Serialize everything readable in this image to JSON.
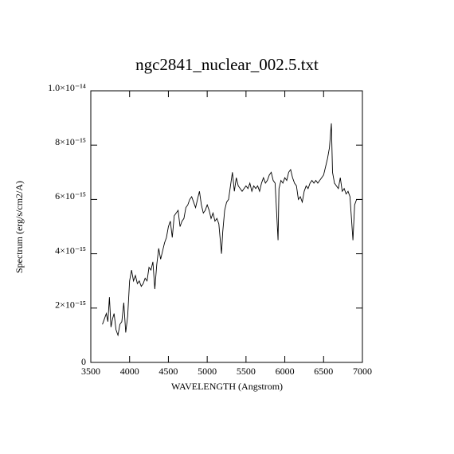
{
  "chart_data": {
    "type": "line",
    "title": "ngc2841_nuclear_002.5.txt",
    "xlabel": "WAVELENGTH (Angstrom)",
    "ylabel": "Spectrum (erg/s/cm2/A)",
    "xlim": [
      3500,
      7000
    ],
    "ylim": [
      0,
      1e-14
    ],
    "xticks": [
      3500,
      4000,
      4500,
      5000,
      5500,
      6000,
      6500,
      7000
    ],
    "yticks": [
      0,
      {
        "value": 2e-15,
        "label": "2×10⁻¹⁵"
      },
      {
        "value": 4e-15,
        "label": "4×10⁻¹⁵"
      },
      {
        "value": 6e-15,
        "label": "6×10⁻¹⁵"
      },
      {
        "value": 8e-15,
        "label": "8×10⁻¹⁵"
      },
      {
        "value": 1e-14,
        "label": "1.0×10⁻¹⁴"
      }
    ],
    "color": "#000000",
    "x": [
      3650,
      3675,
      3700,
      3720,
      3740,
      3760,
      3780,
      3800,
      3825,
      3850,
      3875,
      3900,
      3925,
      3950,
      3975,
      4000,
      4025,
      4050,
      4075,
      4100,
      4125,
      4150,
      4175,
      4200,
      4225,
      4250,
      4275,
      4300,
      4325,
      4350,
      4375,
      4400,
      4425,
      4450,
      4475,
      4500,
      4525,
      4550,
      4575,
      4600,
      4625,
      4650,
      4675,
      4700,
      4725,
      4750,
      4775,
      4800,
      4825,
      4850,
      4875,
      4900,
      4925,
      4950,
      4975,
      5000,
      5025,
      5050,
      5075,
      5100,
      5125,
      5150,
      5184,
      5200,
      5225,
      5250,
      5275,
      5300,
      5325,
      5350,
      5375,
      5400,
      5425,
      5450,
      5475,
      5500,
      5525,
      5550,
      5575,
      5600,
      5625,
      5650,
      5675,
      5700,
      5725,
      5750,
      5775,
      5800,
      5825,
      5850,
      5875,
      5913,
      5925,
      5950,
      5975,
      6000,
      6025,
      6050,
      6075,
      6100,
      6125,
      6150,
      6175,
      6200,
      6225,
      6250,
      6275,
      6300,
      6325,
      6350,
      6375,
      6400,
      6425,
      6450,
      6475,
      6500,
      6525,
      6550,
      6575,
      6600,
      6615,
      6640,
      6665,
      6690,
      6715,
      6740,
      6765,
      6790,
      6815,
      6840,
      6878,
      6900,
      6925,
      6950,
      7000
    ],
    "values": [
      1.4e-15,
      1.6e-15,
      1.8e-15,
      1.5e-15,
      2.4e-15,
      1.3e-15,
      1.6e-15,
      1.8e-15,
      1.2e-15,
      1e-15,
      1.4e-15,
      1.5e-15,
      2.2e-15,
      1.1e-15,
      1.7e-15,
      3e-15,
      3.4e-15,
      3e-15,
      3.2e-15,
      2.9e-15,
      3e-15,
      2.8e-15,
      2.9e-15,
      3.1e-15,
      3e-15,
      3.5e-15,
      3.4e-15,
      3.7e-15,
      2.7e-15,
      3.6e-15,
      4.2e-15,
      3.8e-15,
      4.1e-15,
      4.4e-15,
      4.6e-15,
      5e-15,
      5.2e-15,
      4.6e-15,
      5.4e-15,
      5.5e-15,
      5.6e-15,
      5e-15,
      5.2e-15,
      5.3e-15,
      5.7e-15,
      5.8e-15,
      6e-15,
      6.1e-15,
      5.9e-15,
      5.7e-15,
      6e-15,
      6.3e-15,
      5.8e-15,
      5.5e-15,
      5.6e-15,
      5.8e-15,
      5.6e-15,
      5.3e-15,
      5.5e-15,
      5.2e-15,
      5.3e-15,
      5.1e-15,
      4e-15,
      4.8e-15,
      5.6e-15,
      5.9e-15,
      6e-15,
      6.5e-15,
      7e-15,
      6.3e-15,
      6.8e-15,
      6.5e-15,
      6.4e-15,
      6.3e-15,
      6.4e-15,
      6.5e-15,
      6.4e-15,
      6.6e-15,
      6.3e-15,
      6.5e-15,
      6.4e-15,
      6.5e-15,
      6.3e-15,
      6.6e-15,
      6.8e-15,
      6.6e-15,
      6.7e-15,
      6.9e-15,
      7e-15,
      6.7e-15,
      6.6e-15,
      4.5e-15,
      6.4e-15,
      6.7e-15,
      6.6e-15,
      6.8e-15,
      6.7e-15,
      7e-15,
      7.1e-15,
      6.8e-15,
      6.6e-15,
      6.5e-15,
      6e-15,
      6.1e-15,
      5.9e-15,
      6.3e-15,
      6.5e-15,
      6.4e-15,
      6.6e-15,
      6.7e-15,
      6.6e-15,
      6.7e-15,
      6.6e-15,
      6.7e-15,
      6.8e-15,
      6.9e-15,
      7.2e-15,
      7.5e-15,
      7.9e-15,
      8.8e-15,
      7e-15,
      6.6e-15,
      6.5e-15,
      6.4e-15,
      6.8e-15,
      6.3e-15,
      6.4e-15,
      6.2e-15,
      6.3e-15,
      6.1e-15,
      4.5e-15,
      5.8e-15,
      6e-15,
      6e-15,
      6e-15
    ]
  }
}
